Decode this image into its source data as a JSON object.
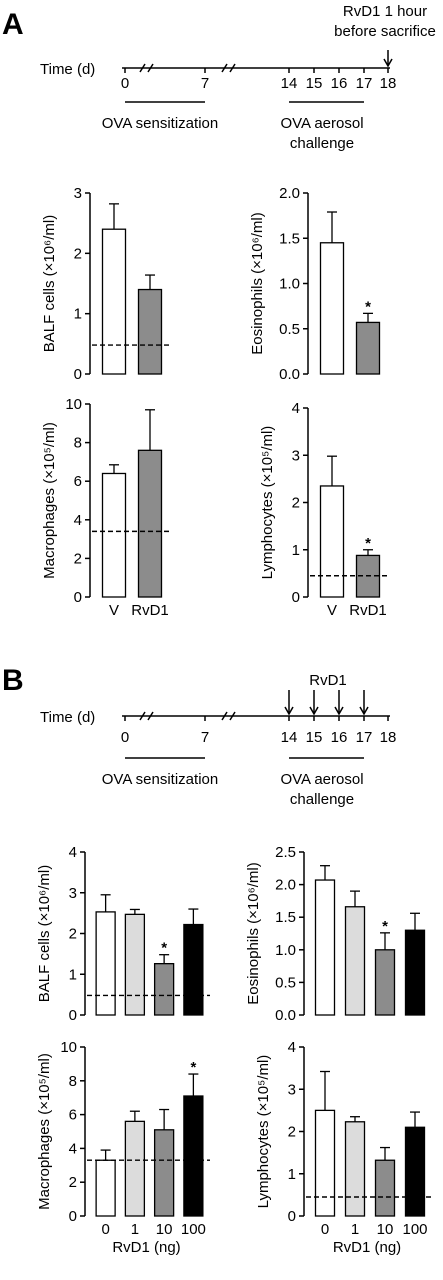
{
  "panels": [
    {
      "letter": "A",
      "timeline": {
        "axis_label": "Time (d)",
        "ticks": [
          "0",
          "7",
          "14",
          "15",
          "16",
          "17",
          "18"
        ],
        "top_note": "RvD1 1 hour\nbefore sacrifice",
        "arrow_days": [
          "18"
        ],
        "arrow_label": "",
        "sensitization": "OVA sensitization",
        "challenge": "OVA aerosol\nchallenge"
      }
    },
    {
      "letter": "B",
      "timeline": {
        "axis_label": "Time (d)",
        "ticks": [
          "0",
          "7",
          "14",
          "15",
          "16",
          "17",
          "18"
        ],
        "top_note": "",
        "arrow_days": [
          "14",
          "15",
          "16",
          "17"
        ],
        "arrow_label": "RvD1",
        "sensitization": "OVA sensitization",
        "challenge": "OVA aerosol\nchallenge"
      }
    }
  ],
  "colors": {
    "vehicle": "#ffffff",
    "light": "#dcdcdc",
    "mid": "#8c8c8c",
    "dark": "#000000",
    "axis": "#000000"
  },
  "chart_data": [
    {
      "type": "bar",
      "panel": "A",
      "ylabel": "BALF cells (×10⁶/ml)",
      "ylim": [
        0,
        3
      ],
      "yticks": [
        "0",
        "1",
        "2",
        "3"
      ],
      "categories": [
        "V",
        "RvD1"
      ],
      "show_categories": false,
      "values": [
        2.4,
        1.4
      ],
      "errors": [
        0.42,
        0.24
      ],
      "significant": [
        false,
        false
      ],
      "fills": [
        "#ffffff",
        "#8c8c8c"
      ],
      "baseline": 0.48
    },
    {
      "type": "bar",
      "panel": "A",
      "ylabel": "Eosinophils (×10⁶/ml)",
      "ylim": [
        0,
        2
      ],
      "yticks": [
        "0.0",
        "0.5",
        "1.0",
        "1.5",
        "2.0"
      ],
      "categories": [
        "V",
        "RvD1"
      ],
      "show_categories": false,
      "values": [
        1.45,
        0.57
      ],
      "errors": [
        0.34,
        0.1
      ],
      "significant": [
        false,
        true
      ],
      "fills": [
        "#ffffff",
        "#8c8c8c"
      ],
      "baseline": null
    },
    {
      "type": "bar",
      "panel": "A",
      "ylabel": "Macrophages (×10⁵/ml)",
      "ylim": [
        0,
        10
      ],
      "yticks": [
        "0",
        "2",
        "4",
        "6",
        "8",
        "10"
      ],
      "categories": [
        "V",
        "RvD1"
      ],
      "show_categories": true,
      "values": [
        6.4,
        7.6
      ],
      "errors": [
        0.45,
        2.1
      ],
      "significant": [
        false,
        false
      ],
      "fills": [
        "#ffffff",
        "#8c8c8c"
      ],
      "baseline": 3.4
    },
    {
      "type": "bar",
      "panel": "A",
      "ylabel": "Lymphocytes (×10⁵/ml)",
      "ylim": [
        0,
        4
      ],
      "yticks": [
        "0",
        "1",
        "2",
        "3",
        "4"
      ],
      "categories": [
        "V",
        "RvD1"
      ],
      "show_categories": true,
      "values": [
        2.35,
        0.88
      ],
      "errors": [
        0.63,
        0.12
      ],
      "significant": [
        false,
        true
      ],
      "fills": [
        "#ffffff",
        "#8c8c8c"
      ],
      "baseline": 0.45
    },
    {
      "type": "bar",
      "panel": "B",
      "ylabel": "BALF cells (×10⁶/ml)",
      "ylim": [
        0,
        4
      ],
      "yticks": [
        "0",
        "1",
        "2",
        "3",
        "4"
      ],
      "categories": [
        "0",
        "1",
        "10",
        "100"
      ],
      "show_categories": false,
      "values": [
        2.53,
        2.47,
        1.26,
        2.22
      ],
      "errors": [
        0.42,
        0.12,
        0.22,
        0.38
      ],
      "significant": [
        false,
        false,
        true,
        false
      ],
      "fills": [
        "#ffffff",
        "#dcdcdc",
        "#8c8c8c",
        "#000000"
      ],
      "baseline": 0.48
    },
    {
      "type": "bar",
      "panel": "B",
      "ylabel": "Eosinophils (×10⁶/ml)",
      "ylim": [
        0,
        2.5
      ],
      "yticks": [
        "0.0",
        "0.5",
        "1.0",
        "1.5",
        "2.0",
        "2.5"
      ],
      "categories": [
        "0",
        "1",
        "10",
        "100"
      ],
      "show_categories": false,
      "values": [
        2.07,
        1.66,
        1.0,
        1.3
      ],
      "errors": [
        0.22,
        0.24,
        0.26,
        0.26
      ],
      "significant": [
        false,
        false,
        true,
        false
      ],
      "fills": [
        "#ffffff",
        "#dcdcdc",
        "#8c8c8c",
        "#000000"
      ],
      "baseline": null
    },
    {
      "type": "bar",
      "panel": "B",
      "ylabel": "Macrophages (×10⁵/ml)",
      "ylim": [
        0,
        10
      ],
      "yticks": [
        "0",
        "2",
        "4",
        "6",
        "8",
        "10"
      ],
      "categories": [
        "0",
        "1",
        "10",
        "100"
      ],
      "show_categories": true,
      "xlabel": "RvD1 (ng)",
      "values": [
        3.3,
        5.6,
        5.1,
        7.1
      ],
      "errors": [
        0.6,
        0.6,
        1.2,
        1.3
      ],
      "significant": [
        false,
        false,
        false,
        true
      ],
      "fills": [
        "#ffffff",
        "#dcdcdc",
        "#8c8c8c",
        "#000000"
      ],
      "baseline": 3.3
    },
    {
      "type": "bar",
      "panel": "B",
      "ylabel": "Lymphocytes (×10⁵/ml)",
      "ylim": [
        0,
        4
      ],
      "yticks": [
        "0",
        "1",
        "2",
        "3",
        "4"
      ],
      "categories": [
        "0",
        "1",
        "10",
        "100"
      ],
      "show_categories": true,
      "xlabel": "RvD1 (ng)",
      "values": [
        2.5,
        2.23,
        1.32,
        2.1
      ],
      "errors": [
        0.92,
        0.12,
        0.3,
        0.36
      ],
      "significant": [
        false,
        false,
        false,
        false
      ],
      "fills": [
        "#ffffff",
        "#dcdcdc",
        "#8c8c8c",
        "#000000"
      ],
      "baseline": 0.45
    }
  ]
}
